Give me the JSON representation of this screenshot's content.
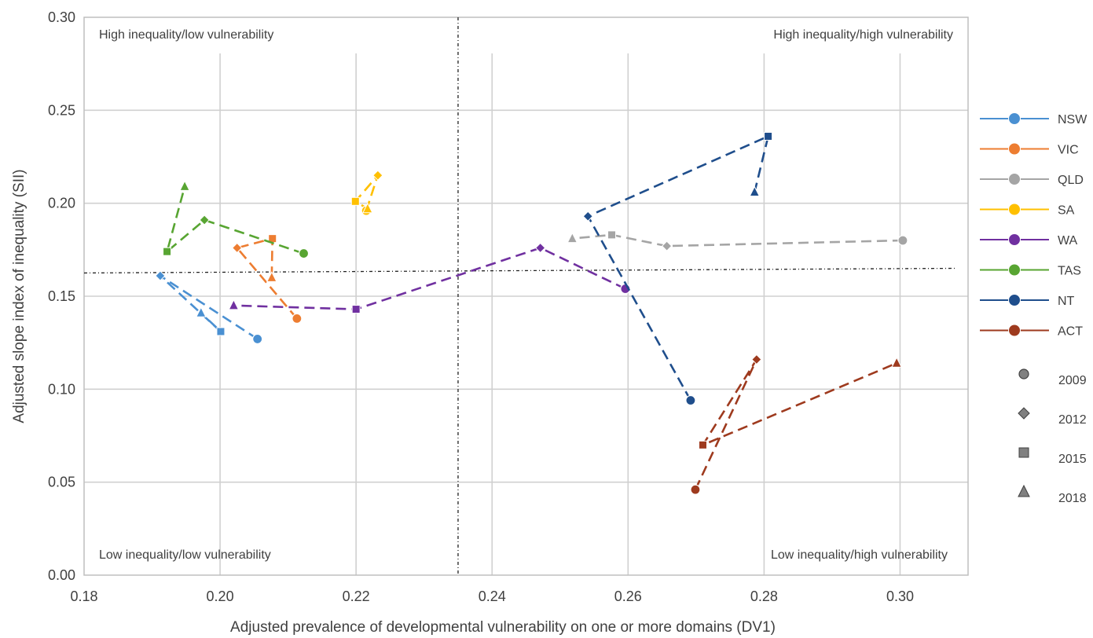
{
  "chart_data": {
    "type": "scatter",
    "xlabel": "Adjusted prevalence of developmental vulnerability on one or more domains (DV1)",
    "ylabel": "Adjusted slope index of inequality (SII)",
    "xlim": [
      0.18,
      0.31
    ],
    "ylim": [
      0.0,
      0.3
    ],
    "x_ticks": [
      "0.18",
      "0.20",
      "0.22",
      "0.24",
      "0.26",
      "0.28",
      "0.30"
    ],
    "y_ticks": [
      "0.00",
      "0.05",
      "0.10",
      "0.15",
      "0.20",
      "0.25",
      "0.30"
    ],
    "grid": true,
    "legend_position": "right",
    "quadrant_labels": {
      "top_left": "High inequality/low vulnerability",
      "top_right": "High inequality/high vulnerability",
      "bottom_left": "Low inequality/low vulnerability",
      "bottom_right": "Low inequality/high vulnerability"
    },
    "reference_lines": {
      "vertical_x": 0.235,
      "horizontal_y": [
        0.1625,
        0.165
      ]
    },
    "years": [
      "2009",
      "2012",
      "2015",
      "2018"
    ],
    "year_markers": [
      "circle",
      "diamond",
      "square",
      "triangle"
    ],
    "series": [
      {
        "name": "NSW",
        "color": "#4a90d2",
        "points": [
          {
            "year": "2009",
            "x": 0.2055,
            "y": 0.127
          },
          {
            "year": "2012",
            "x": 0.1912,
            "y": 0.161
          },
          {
            "year": "2015",
            "x": 0.2001,
            "y": 0.131
          },
          {
            "year": "2018",
            "x": 0.1972,
            "y": 0.141
          }
        ]
      },
      {
        "name": "VIC",
        "color": "#ed7d31",
        "points": [
          {
            "year": "2009",
            "x": 0.2113,
            "y": 0.138
          },
          {
            "year": "2012",
            "x": 0.2025,
            "y": 0.176
          },
          {
            "year": "2015",
            "x": 0.2077,
            "y": 0.181
          },
          {
            "year": "2018",
            "x": 0.2076,
            "y": 0.16
          }
        ]
      },
      {
        "name": "QLD",
        "color": "#a5a5a5",
        "points": [
          {
            "year": "2009",
            "x": 0.3004,
            "y": 0.18
          },
          {
            "year": "2012",
            "x": 0.2657,
            "y": 0.177
          },
          {
            "year": "2015",
            "x": 0.2576,
            "y": 0.183
          },
          {
            "year": "2018",
            "x": 0.2518,
            "y": 0.181
          }
        ]
      },
      {
        "name": "SA",
        "color": "#ffc000",
        "points": [
          {
            "year": "2009",
            "x": 0.2215,
            "y": 0.196
          },
          {
            "year": "2012",
            "x": 0.2232,
            "y": 0.215
          },
          {
            "year": "2015",
            "x": 0.2199,
            "y": 0.201
          },
          {
            "year": "2018",
            "x": 0.2217,
            "y": 0.197
          }
        ]
      },
      {
        "name": "WA",
        "color": "#7030a0",
        "points": [
          {
            "year": "2009",
            "x": 0.2596,
            "y": 0.154
          },
          {
            "year": "2012",
            "x": 0.2471,
            "y": 0.176
          },
          {
            "year": "2015",
            "x": 0.22,
            "y": 0.143
          },
          {
            "year": "2018",
            "x": 0.202,
            "y": 0.145
          }
        ]
      },
      {
        "name": "TAS",
        "color": "#58a532",
        "points": [
          {
            "year": "2009",
            "x": 0.2123,
            "y": 0.173
          },
          {
            "year": "2012",
            "x": 0.1977,
            "y": 0.191
          },
          {
            "year": "2015",
            "x": 0.1922,
            "y": 0.174
          },
          {
            "year": "2018",
            "x": 0.1948,
            "y": 0.209
          }
        ]
      },
      {
        "name": "NT",
        "color": "#1f4e8c",
        "points": [
          {
            "year": "2009",
            "x": 0.2692,
            "y": 0.094
          },
          {
            "year": "2012",
            "x": 0.2541,
            "y": 0.193
          },
          {
            "year": "2015",
            "x": 0.2806,
            "y": 0.236
          },
          {
            "year": "2018",
            "x": 0.2786,
            "y": 0.206
          }
        ]
      },
      {
        "name": "ACT",
        "color": "#9e3a1e",
        "points": [
          {
            "year": "2009",
            "x": 0.2699,
            "y": 0.046
          },
          {
            "year": "2012",
            "x": 0.2789,
            "y": 0.116
          },
          {
            "year": "2015",
            "x": 0.271,
            "y": 0.07
          },
          {
            "year": "2018",
            "x": 0.2995,
            "y": 0.114
          }
        ]
      }
    ]
  }
}
